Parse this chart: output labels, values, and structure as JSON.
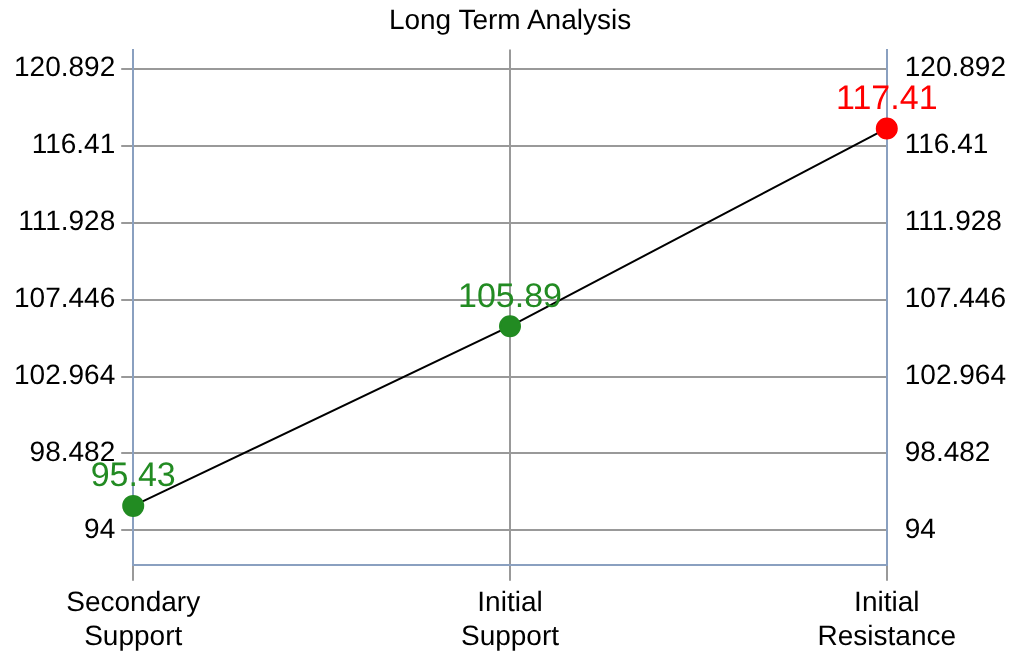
{
  "chart_data": {
    "type": "line",
    "title": "Long Term Analysis",
    "categories": [
      "Secondary Support",
      "Initial Support",
      "Initial Resistance"
    ],
    "series": [
      {
        "color": "#000000",
        "colors": [
          "#228b22",
          "#228b22",
          "#ff0000"
        ],
        "values": [
          95.43,
          105.89,
          117.41
        ]
      }
    ],
    "ylim": [
      92,
      122
    ],
    "yticks": [
      94,
      98.482,
      102.964,
      107.446,
      111.928,
      116.41,
      120.892
    ],
    "y2lim": [
      92,
      122
    ],
    "y2ticks": [
      94,
      98.482,
      102.964,
      107.446,
      111.928,
      116.41,
      120.892
    ],
    "data_labels": true,
    "grid": true,
    "legend": false,
    "marker": "circle",
    "line_style": "solid"
  }
}
